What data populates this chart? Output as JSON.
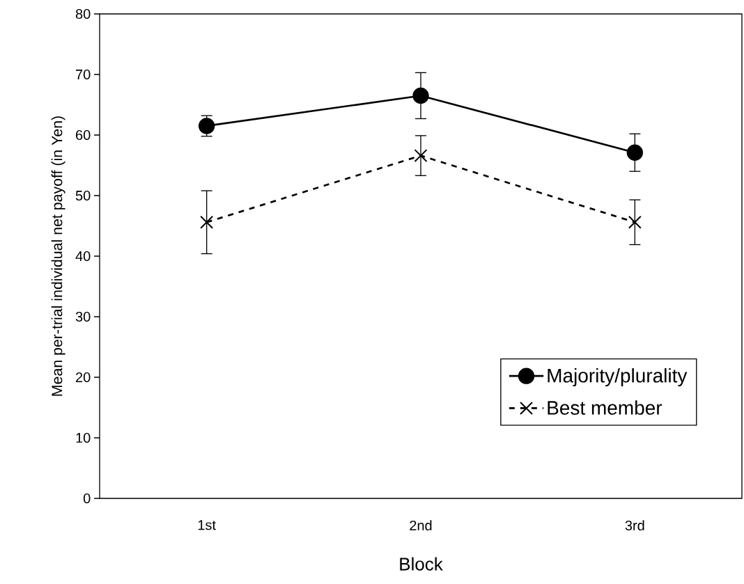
{
  "chart_data": {
    "type": "line",
    "xlabel": "Block",
    "ylabel": "Mean per-trial individual net payoff (in Yen)",
    "categories": [
      "1st",
      "2nd",
      "3rd"
    ],
    "ylim": [
      0,
      80
    ],
    "yticks": [
      0,
      10,
      20,
      30,
      40,
      50,
      60,
      70,
      80
    ],
    "grid": false,
    "legend": "bottom right",
    "series": [
      {
        "name": "Majority/plurality",
        "color": "#000000",
        "marker": "circle",
        "line_style": "solid",
        "values": [
          61.5,
          66.5,
          57.1
        ],
        "errors": [
          1.7,
          3.8,
          3.1
        ]
      },
      {
        "name": "Best member",
        "color": "#000000",
        "marker": "cross",
        "line_style": "dashed",
        "values": [
          45.6,
          56.6,
          45.6
        ],
        "errors": [
          5.2,
          3.3,
          3.7
        ]
      }
    ]
  }
}
